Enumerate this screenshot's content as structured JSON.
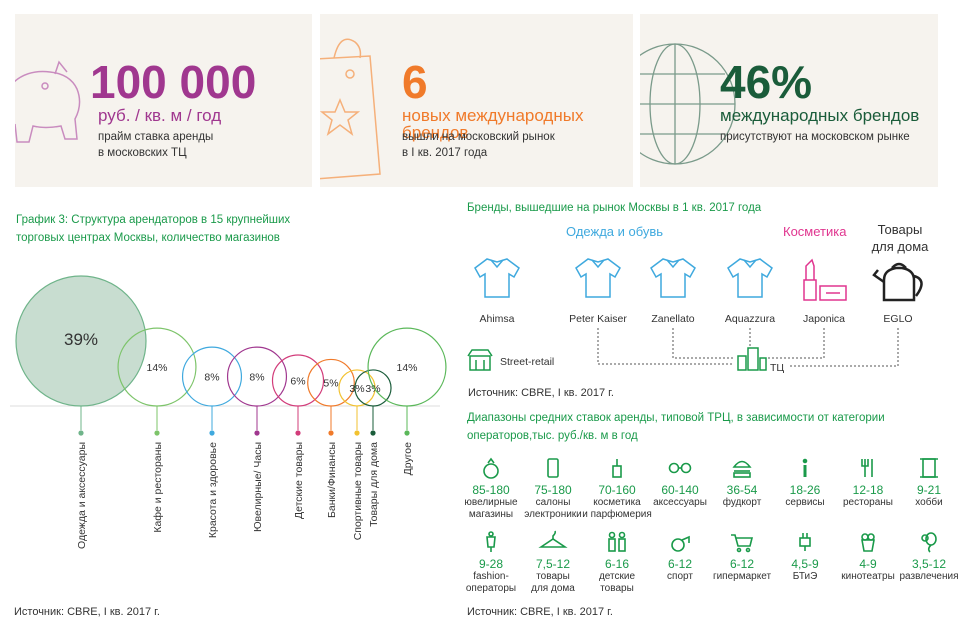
{
  "stats": [
    {
      "big": "100 000",
      "unit": "руб. / кв. м / год",
      "desc1": "прайм ставка аренды",
      "desc2": "в московских ТЦ",
      "color": "#a0378f"
    },
    {
      "big": "6",
      "unit": "новых международных брендов",
      "desc1": "вышли на московский рынок",
      "desc2": "в I кв. 2017 года",
      "color": "#f07a2a"
    },
    {
      "big": "46%",
      "unit": "международных брендов",
      "desc1": "присутствуют на московском рынке",
      "desc2": "",
      "color": "#1a5c3a"
    }
  ],
  "left": {
    "title1": "График 3: Структура арендаторов в 15 крупнейших",
    "title2": "торговых центрах Москвы, количество магазинов",
    "source": "Источник: CBRE, I кв. 2017 г."
  },
  "chart_data": {
    "type": "bubble",
    "title": "График 3: Структура арендаторов в 15 крупнейших торговых центрах Москвы, количество магазинов",
    "categories": [
      "Одежда и аксессуары",
      "Кафе и рестораны",
      "Красота и здоровье",
      "Ювелирные/ Часы",
      "Детские товары",
      "Банки/Финансы",
      "Спортивные товары",
      "Товары для дома",
      "Другое"
    ],
    "values": [
      39,
      14,
      8,
      8,
      6,
      5,
      3,
      3,
      14
    ],
    "labels": [
      "39%",
      "14%",
      "8%",
      "8%",
      "6%",
      "5%",
      "3%",
      "3%",
      "14%"
    ],
    "colors": [
      "#6fb48a",
      "#7dc46a",
      "#3fa9de",
      "#a0378f",
      "#d23c7a",
      "#f07a2a",
      "#f2c230",
      "#1a5c3a",
      "#5bb85a"
    ]
  },
  "brands": {
    "title": "Бренды, вышедшие на рынок Москвы в 1 кв. 2017 года",
    "cat_clothing": "Одежда и обувь",
    "cat_cosmetics": "Косметика",
    "cat_home1": "Товары",
    "cat_home2": "для дома",
    "items": [
      "Ahimsa",
      "Peter Kaiser",
      "Zanellato",
      "Aquazzura",
      "Japonica",
      "EGLO"
    ],
    "street": "Street-retail",
    "mall": "ТЦ",
    "source": "Источник: CBRE, I кв. 2017 г."
  },
  "ranges": {
    "title1": "Диапазоны средних ставок  аренды, типовой ТРЦ, в зависимости от категории",
    "title2": "операторов,тыс. руб./кв. м в год",
    "row1": [
      {
        "v": "85-180",
        "l1": "ювелирные",
        "l2": "магазины",
        "icon": "ring-icon"
      },
      {
        "v": "75-180",
        "l1": "салоны",
        "l2": "электроники",
        "icon": "phone-icon"
      },
      {
        "v": "70-160",
        "l1": "косметика",
        "l2": "и парфюмерия",
        "icon": "perfume-icon"
      },
      {
        "v": "60-140",
        "l1": "аксессуары",
        "l2": "",
        "icon": "glasses-icon"
      },
      {
        "v": "36-54",
        "l1": "фудкорт",
        "l2": "",
        "icon": "burger-icon"
      },
      {
        "v": "18-26",
        "l1": "сервисы",
        "l2": "",
        "icon": "info-icon"
      },
      {
        "v": "12-18",
        "l1": "рестораны",
        "l2": "",
        "icon": "cutlery-icon"
      },
      {
        "v": "9-21",
        "l1": "хобби",
        "l2": "",
        "icon": "spool-icon"
      }
    ],
    "row2": [
      {
        "v": "9-28",
        "l1": "fashion-",
        "l2": "операторы",
        "icon": "mannequin-icon"
      },
      {
        "v": "7,5-12",
        "l1": "товары",
        "l2": "для дома",
        "icon": "hanger-icon"
      },
      {
        "v": "6-16",
        "l1": "детские",
        "l2": "товары",
        "icon": "kids-icon"
      },
      {
        "v": "6-12",
        "l1": "спорт",
        "l2": "",
        "icon": "whistle-icon"
      },
      {
        "v": "6-12",
        "l1": "гипермаркет",
        "l2": "",
        "icon": "cart-icon"
      },
      {
        "v": "4,5-9",
        "l1": "БТиЭ",
        "l2": "",
        "icon": "plug-icon"
      },
      {
        "v": "4-9",
        "l1": "кинотеатры",
        "l2": "",
        "icon": "popcorn-icon"
      },
      {
        "v": "3,5-12",
        "l1": "развлечения",
        "l2": "",
        "icon": "balloon-icon"
      }
    ],
    "source": "Источник: CBRE, I кв. 2017 г."
  }
}
